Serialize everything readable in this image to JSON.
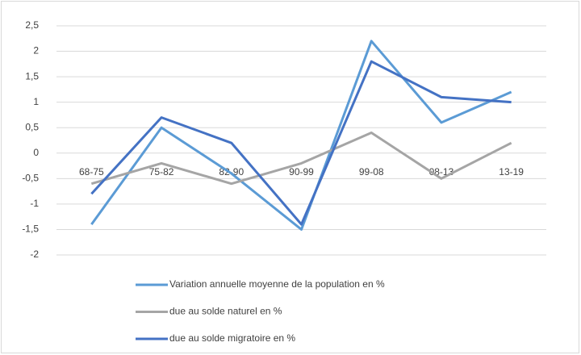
{
  "chart_data": {
    "type": "line",
    "categories": [
      "68-75",
      "75-82",
      "82-90",
      "90-99",
      "99-08",
      "08-13",
      "13-19"
    ],
    "series": [
      {
        "name": "Variation annuelle moyenne de la population en %",
        "color": "#5b9bd5",
        "values": [
          -1.4,
          0.5,
          -0.4,
          -1.5,
          2.2,
          0.6,
          1.2
        ]
      },
      {
        "name": "due au solde naturel en %",
        "color": "#a5a5a5",
        "values": [
          -0.6,
          -0.2,
          -0.6,
          -0.2,
          0.4,
          -0.5,
          0.2
        ]
      },
      {
        "name": "due au solde migratoire en %",
        "color": "#4472c4",
        "values": [
          -0.8,
          0.7,
          0.2,
          -1.4,
          1.8,
          1.1,
          1.0
        ]
      }
    ],
    "ylim": [
      -2,
      2.5
    ],
    "yticks": [
      {
        "value": 2.5,
        "label": "2,5"
      },
      2,
      {
        "value": 1.5,
        "label": "1,5"
      },
      1,
      {
        "value": 0.5,
        "label": "0,5"
      },
      0,
      {
        "value": -0.5,
        "label": "-0,5"
      },
      -1,
      {
        "value": -1.5,
        "label": "-1,5"
      },
      -2
    ],
    "grid": true,
    "legend": "bottom"
  }
}
